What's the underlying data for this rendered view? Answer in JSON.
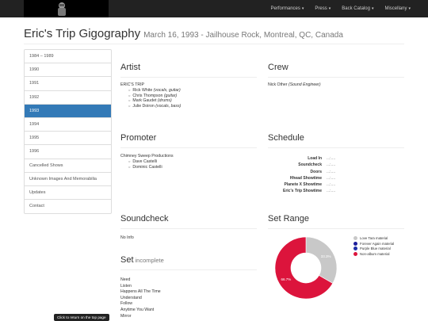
{
  "nav": {
    "items": [
      {
        "label": "Performances",
        "caret": "▾"
      },
      {
        "label": "Press",
        "caret": "▾"
      },
      {
        "label": "Back Catalog",
        "caret": "▾"
      },
      {
        "label": "Miscellany",
        "caret": "▾"
      }
    ]
  },
  "page": {
    "title": "Eric's Trip Gigography",
    "subtitle": "March 16, 1993 - Jailhouse Rock, Montreal, QC, Canada"
  },
  "sidebar": {
    "items": [
      {
        "label": "1984 – 1989",
        "active": false
      },
      {
        "label": "1990",
        "active": false
      },
      {
        "label": "1991",
        "active": false
      },
      {
        "label": "1992",
        "active": false
      },
      {
        "label": "1993",
        "active": true
      },
      {
        "label": "1994",
        "active": false
      },
      {
        "label": "1995",
        "active": false
      },
      {
        "label": "1996",
        "active": false
      },
      {
        "label": "Cancelled Shows",
        "active": false
      },
      {
        "label": "Unknown Images And Memorabilia",
        "active": false
      },
      {
        "label": "Updates",
        "active": false
      },
      {
        "label": "Contact",
        "active": false
      }
    ]
  },
  "artist": {
    "heading": "Artist",
    "band": "ERIC'S TRIP",
    "members": [
      {
        "name": "Rick White",
        "role": "(vocals, guitar)"
      },
      {
        "name": "Chris Thompson",
        "role": "(guitar)"
      },
      {
        "name": "Mark Gaudet",
        "role": "(drums)"
      },
      {
        "name": "Julie Doiron",
        "role": "(vocals, bass)"
      }
    ]
  },
  "crew": {
    "heading": "Crew",
    "name": "Nick Other",
    "role": "(Sound Engineer)"
  },
  "promoter": {
    "heading": "Promoter",
    "company": "Chimney Sweep Productions",
    "people": [
      "Dave Castelli",
      "Dominic Castelli"
    ]
  },
  "schedule": {
    "heading": "Schedule",
    "rows": [
      {
        "label": "Load In",
        "time": "...:...."
      },
      {
        "label": "Soundcheck",
        "time": "...:...."
      },
      {
        "label": "Doors",
        "time": "...:...."
      },
      {
        "label": "Hhead Showtime",
        "time": "...:...."
      },
      {
        "label": "Planete X Showtime",
        "time": "...:...."
      },
      {
        "label": "Eric's Trip Showtime",
        "time": "...:...."
      }
    ]
  },
  "soundcheck": {
    "heading": "Soundcheck",
    "text": "No Info"
  },
  "set": {
    "heading": "Set",
    "note": "incomplete",
    "songs": [
      "Need",
      "Listen",
      "Happens All The Time",
      "Understand",
      "Follow",
      "Anytime You Want",
      "Mirror"
    ]
  },
  "set_range": {
    "heading": "Set Range"
  },
  "chart_data": {
    "type": "pie",
    "categories": [
      "Love Tara material",
      "Forever Again material",
      "Purple Blue material",
      "Non-album material"
    ],
    "values": [
      33.3,
      0,
      0,
      66.7
    ],
    "labels": [
      "33.3%",
      "",
      "",
      "66.7%"
    ],
    "colors": [
      "#c8c8c8",
      "#1f1f9c",
      "#1e2fa8",
      "#dc143c"
    ],
    "legend": "right"
  },
  "footer": {
    "toplink": "Click to return on the top page"
  }
}
